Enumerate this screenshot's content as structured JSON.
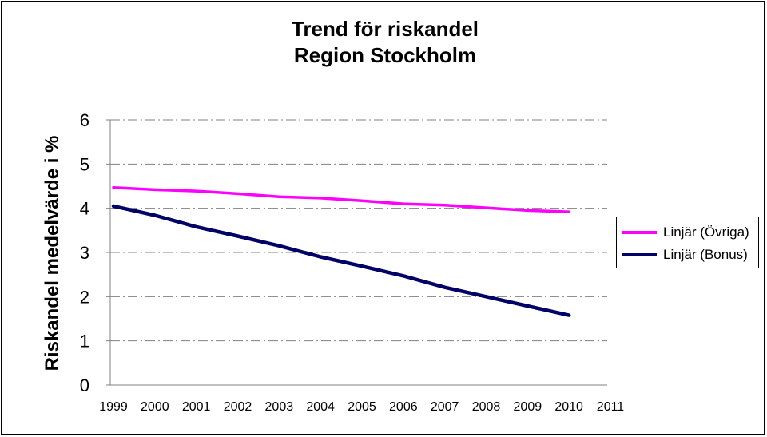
{
  "chart_data": {
    "type": "line",
    "title": "Trend för riskandel",
    "subtitle": "Region Stockholm",
    "ylabel": "Riskandel medelvärde i %",
    "xlabel": "",
    "ylim": [
      0,
      6
    ],
    "yticks": [
      "0",
      "1",
      "2",
      "3",
      "4",
      "5",
      "6"
    ],
    "categories": [
      "1999",
      "2000",
      "2001",
      "2002",
      "2003",
      "2004",
      "2005",
      "2006",
      "2007",
      "2008",
      "2009",
      "2010",
      "2011"
    ],
    "series": [
      {
        "name": "Linjär (Övriga)",
        "color": "#ff00ff",
        "values": [
          4.47,
          4.42,
          4.39,
          4.33,
          4.26,
          4.23,
          4.17,
          4.1,
          4.07,
          4.01,
          3.95,
          3.92,
          null
        ]
      },
      {
        "name": "Linjär (Bonus)",
        "color": "#000066",
        "values": [
          4.05,
          3.84,
          3.58,
          3.37,
          3.15,
          2.9,
          2.69,
          2.47,
          2.21,
          2.0,
          1.79,
          1.58,
          null
        ]
      }
    ],
    "grid": true,
    "legend": "right"
  }
}
